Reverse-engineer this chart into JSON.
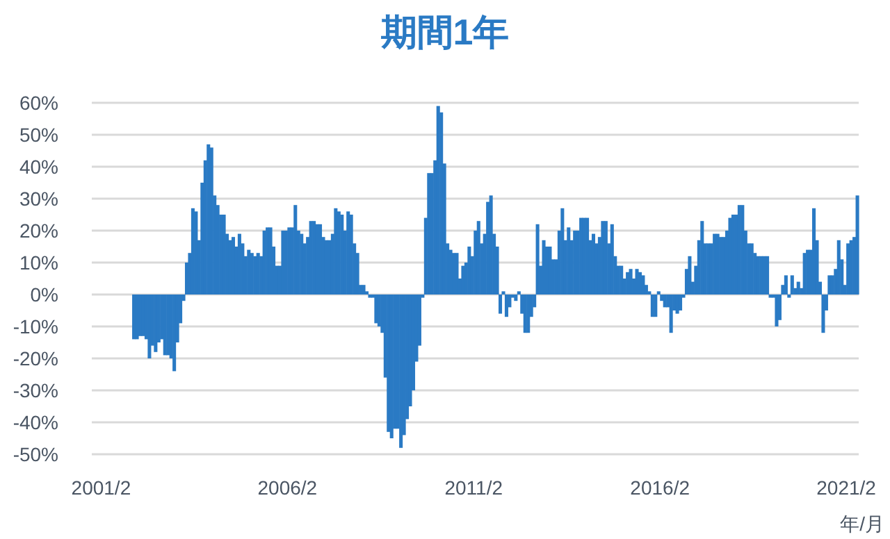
{
  "chart_data": {
    "type": "bar",
    "title": "期間1年",
    "xlabel": "年/月",
    "color": "#2a7ac4",
    "xlim": [
      "2000-11",
      "2021-06"
    ],
    "xticks": [
      {
        "value": "2001-02",
        "label": "2001/2"
      },
      {
        "value": "2006-02",
        "label": "2006/2"
      },
      {
        "value": "2011-02",
        "label": "2011/2"
      },
      {
        "value": "2016-02",
        "label": "2016/2"
      },
      {
        "value": "2021-02",
        "label": "2021/2"
      }
    ],
    "ylim": [
      -50,
      60
    ],
    "yticks": [
      {
        "value": -50,
        "label": "-50%"
      },
      {
        "value": -40,
        "label": "-40%"
      },
      {
        "value": -30,
        "label": "-30%"
      },
      {
        "value": -20,
        "label": "-20%"
      },
      {
        "value": -10,
        "label": "-10%"
      },
      {
        "value": 0,
        "label": "0%"
      },
      {
        "value": 10,
        "label": "10%"
      },
      {
        "value": 20,
        "label": "20%"
      },
      {
        "value": 30,
        "label": "30%"
      },
      {
        "value": 40,
        "label": "40%"
      },
      {
        "value": 50,
        "label": "50%"
      },
      {
        "value": 60,
        "label": "60%"
      }
    ],
    "grid": "y",
    "x": [
      "2001-12",
      "2002-01",
      "2002-02",
      "2002-03",
      "2002-04",
      "2002-05",
      "2002-06",
      "2002-07",
      "2002-08",
      "2002-09",
      "2002-10",
      "2002-11",
      "2002-12",
      "2003-01",
      "2003-02",
      "2003-03",
      "2003-04",
      "2003-05",
      "2003-06",
      "2003-07",
      "2003-08",
      "2003-09",
      "2003-10",
      "2003-11",
      "2003-12",
      "2004-01",
      "2004-02",
      "2004-03",
      "2004-04",
      "2004-05",
      "2004-06",
      "2004-07",
      "2004-08",
      "2004-09",
      "2004-10",
      "2004-11",
      "2004-12",
      "2005-01",
      "2005-02",
      "2005-03",
      "2005-04",
      "2005-05",
      "2005-06",
      "2005-07",
      "2005-08",
      "2005-09",
      "2005-10",
      "2005-11",
      "2005-12",
      "2006-01",
      "2006-02",
      "2006-03",
      "2006-04",
      "2006-05",
      "2006-06",
      "2006-07",
      "2006-08",
      "2006-09",
      "2006-10",
      "2006-11",
      "2006-12",
      "2007-01",
      "2007-02",
      "2007-03",
      "2007-04",
      "2007-05",
      "2007-06",
      "2007-07",
      "2007-08",
      "2007-09",
      "2007-10",
      "2007-11",
      "2007-12",
      "2008-01",
      "2008-02",
      "2008-03",
      "2008-04",
      "2008-05",
      "2008-06",
      "2008-07",
      "2008-08",
      "2008-09",
      "2008-10",
      "2008-11",
      "2008-12",
      "2009-01",
      "2009-02",
      "2009-03",
      "2009-04",
      "2009-05",
      "2009-06",
      "2009-07",
      "2009-08",
      "2009-09",
      "2009-10",
      "2009-11",
      "2009-12",
      "2010-01",
      "2010-02",
      "2010-03",
      "2010-04",
      "2010-05",
      "2010-06",
      "2010-07",
      "2010-08",
      "2010-09",
      "2010-10",
      "2010-11",
      "2010-12",
      "2011-01",
      "2011-02",
      "2011-03",
      "2011-04",
      "2011-05",
      "2011-06",
      "2011-07",
      "2011-08",
      "2011-09",
      "2011-10",
      "2011-11",
      "2011-12",
      "2012-01",
      "2012-02",
      "2012-03",
      "2012-04",
      "2012-05",
      "2012-06",
      "2012-07",
      "2012-08",
      "2012-09",
      "2012-10",
      "2012-11",
      "2012-12",
      "2013-01",
      "2013-02",
      "2013-03",
      "2013-04",
      "2013-05",
      "2013-06",
      "2013-07",
      "2013-08",
      "2013-09",
      "2013-10",
      "2013-11",
      "2013-12",
      "2014-01",
      "2014-02",
      "2014-03",
      "2014-04",
      "2014-05",
      "2014-06",
      "2014-07",
      "2014-08",
      "2014-09",
      "2014-10",
      "2014-11",
      "2014-12",
      "2015-01",
      "2015-02",
      "2015-03",
      "2015-04",
      "2015-05",
      "2015-06",
      "2015-07",
      "2015-08",
      "2015-09",
      "2015-10",
      "2015-11",
      "2015-12",
      "2016-01",
      "2016-02",
      "2016-03",
      "2016-04",
      "2016-05",
      "2016-06",
      "2016-07",
      "2016-08",
      "2016-09",
      "2016-10",
      "2016-11",
      "2016-12",
      "2017-01",
      "2017-02",
      "2017-03",
      "2017-04",
      "2017-05",
      "2017-06",
      "2017-07",
      "2017-08",
      "2017-09",
      "2017-10",
      "2017-11",
      "2017-12",
      "2018-01",
      "2018-02",
      "2018-03",
      "2018-04",
      "2018-05",
      "2018-06",
      "2018-07",
      "2018-08",
      "2018-09",
      "2018-10",
      "2018-11",
      "2018-12",
      "2019-01",
      "2019-02",
      "2019-03",
      "2019-04",
      "2019-05",
      "2019-06",
      "2019-07",
      "2019-08",
      "2019-09",
      "2019-10",
      "2019-11",
      "2019-12",
      "2020-01",
      "2020-02",
      "2020-03",
      "2020-04",
      "2020-05",
      "2020-06",
      "2020-07",
      "2020-08",
      "2020-09",
      "2020-10",
      "2020-11",
      "2020-12",
      "2021-01",
      "2021-02",
      "2021-03",
      "2021-04",
      "2021-05"
    ],
    "values": [
      -14,
      -14,
      -13,
      -13,
      -14,
      -20,
      -16,
      -18,
      -15,
      -14,
      -19,
      -19,
      -20,
      -24,
      -15,
      -9,
      -2,
      10,
      13,
      27,
      26,
      17,
      35,
      42,
      47,
      46,
      31,
      28,
      25,
      25,
      19,
      17,
      18,
      15,
      19,
      16,
      12,
      14,
      13,
      12,
      13,
      12,
      20,
      21,
      21,
      15,
      9,
      9,
      20,
      20,
      21,
      21,
      28,
      20,
      19,
      16,
      18,
      23,
      23,
      22,
      22,
      18,
      17,
      17,
      19,
      27,
      26,
      25,
      20,
      26,
      25,
      16,
      13,
      3,
      3,
      1,
      -1,
      -1,
      -9,
      -10,
      -12,
      -26,
      -43,
      -45,
      -42,
      -42,
      -48,
      -44,
      -39,
      -35,
      -30,
      -21,
      -16,
      -1,
      24,
      38,
      38,
      42,
      59,
      57,
      41,
      16,
      14,
      13,
      13,
      5,
      9,
      10,
      15,
      12,
      20,
      23,
      16,
      19,
      29,
      31,
      19,
      15,
      -6,
      1,
      -7,
      -4,
      -1,
      -2,
      1,
      -6,
      -12,
      -12,
      -7,
      -4,
      22,
      9,
      17,
      15,
      15,
      11,
      11,
      20,
      27,
      17,
      21,
      17,
      20,
      20,
      24,
      24,
      24,
      17,
      19,
      16,
      18,
      23,
      23,
      16,
      22,
      12,
      9,
      9,
      5,
      7,
      8,
      5,
      8,
      7,
      6,
      3,
      1,
      -7,
      -7,
      1,
      -2,
      -4,
      -4,
      -12,
      -5,
      -6,
      -5,
      -1,
      8,
      12,
      4,
      9,
      17,
      23,
      16,
      16,
      16,
      19,
      19,
      18,
      18,
      20,
      24,
      25,
      25,
      28,
      28,
      20,
      16,
      16,
      13,
      12,
      12,
      12,
      12,
      -1,
      -1,
      -10,
      -8,
      3,
      6,
      -1,
      6,
      2,
      4,
      2,
      13,
      14,
      14,
      27,
      17,
      4,
      -12,
      -5,
      6,
      6,
      8,
      17,
      11,
      3,
      16,
      17,
      18,
      31
    ]
  }
}
